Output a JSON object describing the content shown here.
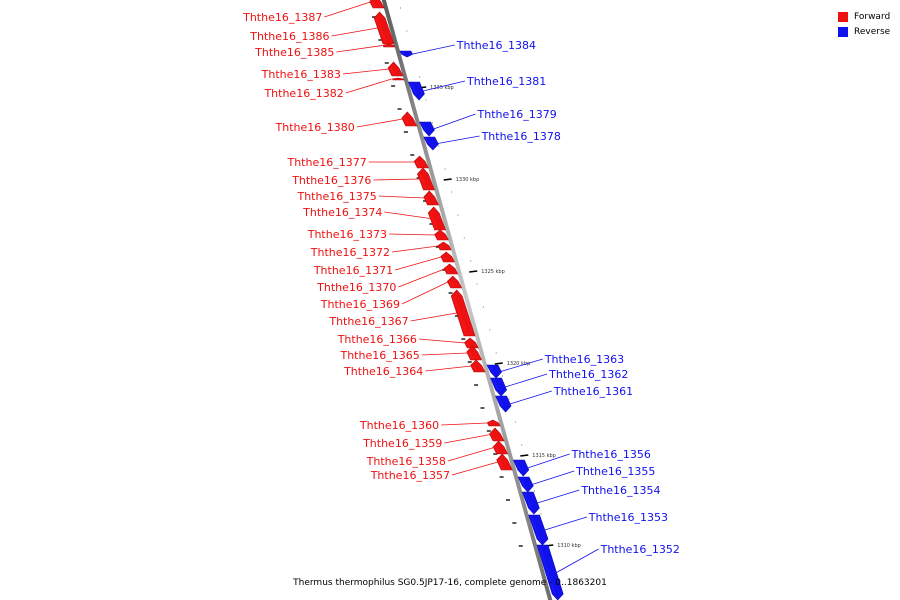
{
  "caption": "Thermus thermophilus SG0.5JP17-16, complete genome - 0..1863201",
  "legend": [
    {
      "label": "Forward",
      "color": "#ee1111"
    },
    {
      "label": "Reverse",
      "color": "#1111ee"
    }
  ],
  "colors": {
    "forward": "#ee1111",
    "reverse": "#1111ee",
    "backbone": "#8a8a8a"
  },
  "scale_ticks": [
    {
      "label": "1335 kbp",
      "kbp": 1335
    },
    {
      "label": "1330 kbp",
      "kbp": 1330
    },
    {
      "label": "1325 kbp",
      "kbp": 1325
    },
    {
      "label": "1320 kbp",
      "kbp": 1320
    },
    {
      "label": "1315 kbp",
      "kbp": 1315
    },
    {
      "label": "1310 kbp",
      "kbp": 1310
    }
  ],
  "genes": [
    {
      "name": "Ththe16_1387",
      "strand": "forward"
    },
    {
      "name": "Ththe16_1386",
      "strand": "forward"
    },
    {
      "name": "Ththe16_1385",
      "strand": "forward"
    },
    {
      "name": "Ththe16_1384",
      "strand": "reverse"
    },
    {
      "name": "Ththe16_1383",
      "strand": "forward"
    },
    {
      "name": "Ththe16_1382",
      "strand": "forward"
    },
    {
      "name": "Ththe16_1381",
      "strand": "reverse"
    },
    {
      "name": "Ththe16_1380",
      "strand": "forward"
    },
    {
      "name": "Ththe16_1379",
      "strand": "reverse"
    },
    {
      "name": "Ththe16_1378",
      "strand": "reverse"
    },
    {
      "name": "Ththe16_1377",
      "strand": "forward"
    },
    {
      "name": "Ththe16_1376",
      "strand": "forward"
    },
    {
      "name": "Ththe16_1375",
      "strand": "forward"
    },
    {
      "name": "Ththe16_1374",
      "strand": "forward"
    },
    {
      "name": "Ththe16_1373",
      "strand": "forward"
    },
    {
      "name": "Ththe16_1372",
      "strand": "forward"
    },
    {
      "name": "Ththe16_1371",
      "strand": "forward"
    },
    {
      "name": "Ththe16_1370",
      "strand": "forward"
    },
    {
      "name": "Ththe16_1369",
      "strand": "forward"
    },
    {
      "name": "Ththe16_1367",
      "strand": "forward"
    },
    {
      "name": "Ththe16_1366",
      "strand": "forward"
    },
    {
      "name": "Ththe16_1365",
      "strand": "forward"
    },
    {
      "name": "Ththe16_1364",
      "strand": "forward"
    },
    {
      "name": "Ththe16_1363",
      "strand": "reverse"
    },
    {
      "name": "Ththe16_1362",
      "strand": "reverse"
    },
    {
      "name": "Ththe16_1361",
      "strand": "reverse"
    },
    {
      "name": "Ththe16_1360",
      "strand": "forward"
    },
    {
      "name": "Ththe16_1359",
      "strand": "forward"
    },
    {
      "name": "Ththe16_1358",
      "strand": "forward"
    },
    {
      "name": "Ththe16_1357",
      "strand": "forward"
    },
    {
      "name": "Ththe16_1356",
      "strand": "reverse"
    },
    {
      "name": "Ththe16_1355",
      "strand": "reverse"
    },
    {
      "name": "Ththe16_1354",
      "strand": "reverse"
    },
    {
      "name": "Ththe16_1353",
      "strand": "reverse"
    },
    {
      "name": "Ththe16_1352",
      "strand": "reverse"
    }
  ]
}
